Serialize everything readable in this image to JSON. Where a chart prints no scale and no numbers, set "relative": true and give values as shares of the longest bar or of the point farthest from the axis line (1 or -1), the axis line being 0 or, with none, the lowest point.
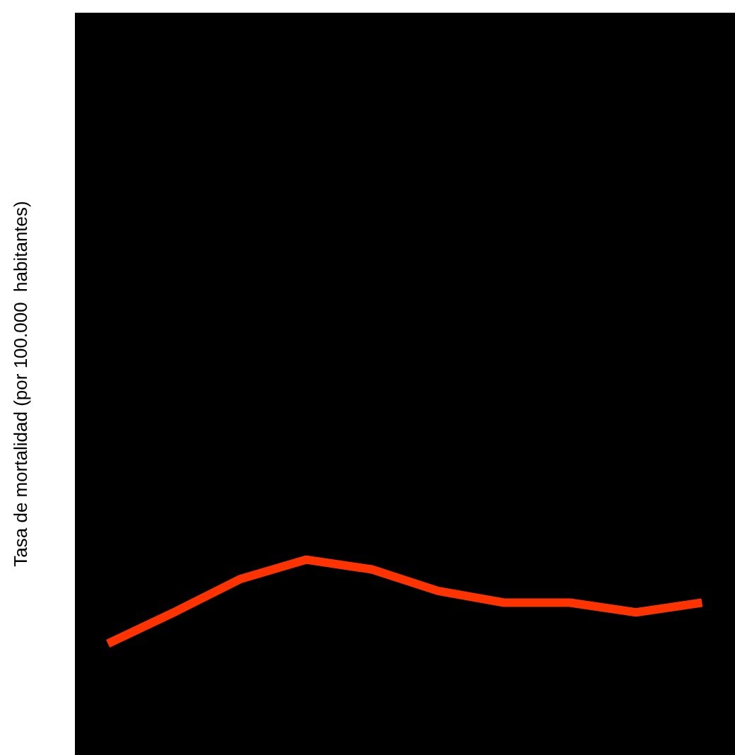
{
  "chart_data": {
    "type": "line",
    "ylabel": "Tasa de mortalidad (por 100.000  habitantes)",
    "relative": true,
    "categories": [
      null,
      null,
      null,
      null,
      null,
      null,
      null,
      null,
      null,
      null
    ],
    "series": [
      {
        "color": "#ff3300",
        "values": [
          0.57,
          0.73,
          0.9,
          1,
          0.95,
          0.84,
          0.78,
          0.78,
          0.73,
          0.78
        ]
      }
    ],
    "grid": false,
    "marker": "none",
    "line_style": "solid"
  }
}
